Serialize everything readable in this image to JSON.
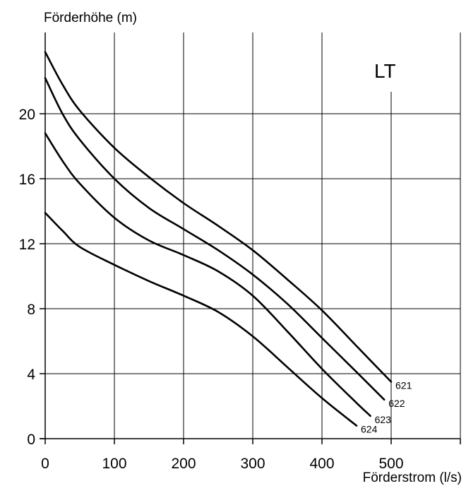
{
  "chart_data": {
    "type": "line",
    "ylabel": "Förderhöhe (m)",
    "xlabel": "Förderstrom (l/s)",
    "annotation": "LT",
    "xlim": [
      0,
      600
    ],
    "ylim": [
      0,
      25
    ],
    "x_ticks": [
      0,
      100,
      200,
      300,
      400,
      500
    ],
    "y_ticks": [
      0,
      4,
      8,
      12,
      16,
      20
    ],
    "grid": true,
    "series": [
      {
        "name": "621",
        "x": [
          0,
          25,
          50,
          100,
          150,
          200,
          250,
          300,
          350,
          400,
          450,
          500
        ],
        "y": [
          23.8,
          21.8,
          20.2,
          17.9,
          16.1,
          14.5,
          13.1,
          11.6,
          9.8,
          7.9,
          5.7,
          3.5
        ]
      },
      {
        "name": "622",
        "x": [
          0,
          25,
          50,
          100,
          150,
          200,
          250,
          300,
          350,
          400,
          450,
          490
        ],
        "y": [
          22.2,
          20.0,
          18.4,
          16.0,
          14.2,
          12.9,
          11.6,
          10.1,
          8.3,
          6.2,
          4.1,
          2.4
        ]
      },
      {
        "name": "623",
        "x": [
          0,
          25,
          50,
          100,
          150,
          200,
          250,
          300,
          350,
          400,
          450,
          470
        ],
        "y": [
          18.8,
          17.1,
          15.7,
          13.6,
          12.2,
          11.3,
          10.3,
          8.8,
          6.6,
          4.3,
          2.2,
          1.4
        ]
      },
      {
        "name": "624",
        "x": [
          0,
          25,
          50,
          100,
          150,
          200,
          250,
          300,
          350,
          400,
          450
        ],
        "y": [
          13.9,
          12.8,
          11.8,
          10.7,
          9.7,
          8.8,
          7.8,
          6.3,
          4.4,
          2.5,
          0.8
        ]
      }
    ]
  }
}
